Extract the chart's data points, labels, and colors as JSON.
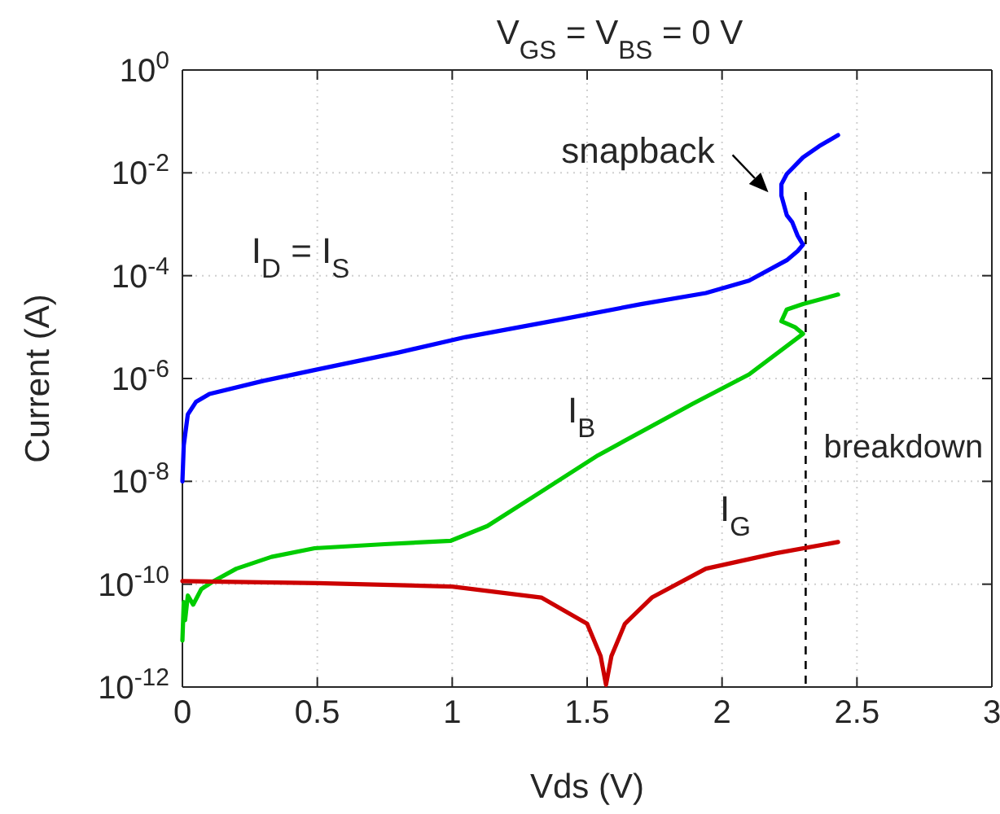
{
  "chart_data": {
    "type": "line",
    "title": "V$_{GS}$ = V$_{BS}$ = 0 V",
    "xlabel": "Vds (V)",
    "ylabel": "Current (A)",
    "log": "y",
    "grid": true,
    "legend": false,
    "line_style": "solid",
    "marker": "none",
    "xlim": [
      0,
      3
    ],
    "xticks": [
      0,
      0.5,
      1,
      1.5,
      2,
      2.5,
      3
    ],
    "ylim": [
      1e-12,
      1
    ],
    "yticks": [
      {
        "value": 1e-12,
        "label": "10$^{-12}$"
      },
      {
        "value": 1e-10,
        "label": "10$^{-10}$"
      },
      {
        "value": 1e-08,
        "label": "10$^{-8}$"
      },
      {
        "value": 1e-06,
        "label": "10$^{-6}$"
      },
      {
        "value": 0.0001,
        "label": "10$^{-4}$"
      },
      {
        "value": 0.01,
        "label": "10$^{-2}$"
      },
      {
        "value": 1,
        "label": "10$^{0}$"
      }
    ],
    "series": [
      {
        "name": "I$_{D}$ = I$_{S}$",
        "color": "#0000ff",
        "x": [
          0,
          0.005,
          0.02,
          0.05,
          0.1,
          0.3,
          0.5,
          0.8,
          1.05,
          1.4,
          1.7,
          1.94,
          2.1,
          2.24,
          2.28,
          2.3,
          2.28,
          2.26,
          2.24,
          2.22,
          2.22,
          2.24,
          2.3,
          2.36,
          2.43
        ],
        "values": [
          1e-08,
          5e-08,
          2e-07,
          3.5e-07,
          5e-07,
          9e-07,
          1.5e-06,
          3.2e-06,
          6.4e-06,
          1.4e-05,
          2.8e-05,
          4.6e-05,
          8e-05,
          0.0002,
          0.0003,
          0.0004,
          0.0006,
          0.0011,
          0.0015,
          0.0036,
          0.006,
          0.0095,
          0.02,
          0.033,
          0.054
        ]
      },
      {
        "name": "I$_{B}$",
        "color": "#00cc00",
        "x": [
          0,
          0.005,
          0.01,
          0.02,
          0.04,
          0.07,
          0.11,
          0.2,
          0.33,
          0.49,
          0.75,
          0.995,
          1.13,
          1.3,
          1.54,
          1.89,
          2.1,
          2.3,
          2.27,
          2.22,
          2.24,
          2.3,
          2.43
        ],
        "values": [
          8e-12,
          4.5e-11,
          2e-11,
          6e-11,
          4e-11,
          8e-11,
          1.1e-10,
          2e-10,
          3.4e-10,
          5e-10,
          6e-10,
          7e-10,
          1.35e-09,
          5e-09,
          3.2e-08,
          3.2e-07,
          1.2e-06,
          7.4e-06,
          1e-05,
          1.3e-05,
          2.2e-05,
          2.8e-05,
          4.3e-05
        ]
      },
      {
        "name": "I$_{G}$",
        "color": "#cc0000",
        "x": [
          0,
          0.5,
          1,
          1.33,
          1.5,
          1.55,
          1.57,
          1.59,
          1.64,
          1.74,
          1.94,
          2.2,
          2.43
        ],
        "values": [
          1.15e-10,
          1.05e-10,
          9e-11,
          5.5e-11,
          1.7e-11,
          4e-12,
          1.1e-12,
          4e-12,
          1.7e-11,
          5.5e-11,
          2e-10,
          4e-10,
          6.6e-10
        ]
      }
    ],
    "ref_lines": [
      {
        "axis": "x",
        "value": 2.31,
        "label": "breakdown",
        "color": "#000000",
        "line_style": "dashed"
      }
    ],
    "annotations": [
      {
        "text": "snapback",
        "x": 2.22,
        "y": 0.0036
      }
    ]
  }
}
